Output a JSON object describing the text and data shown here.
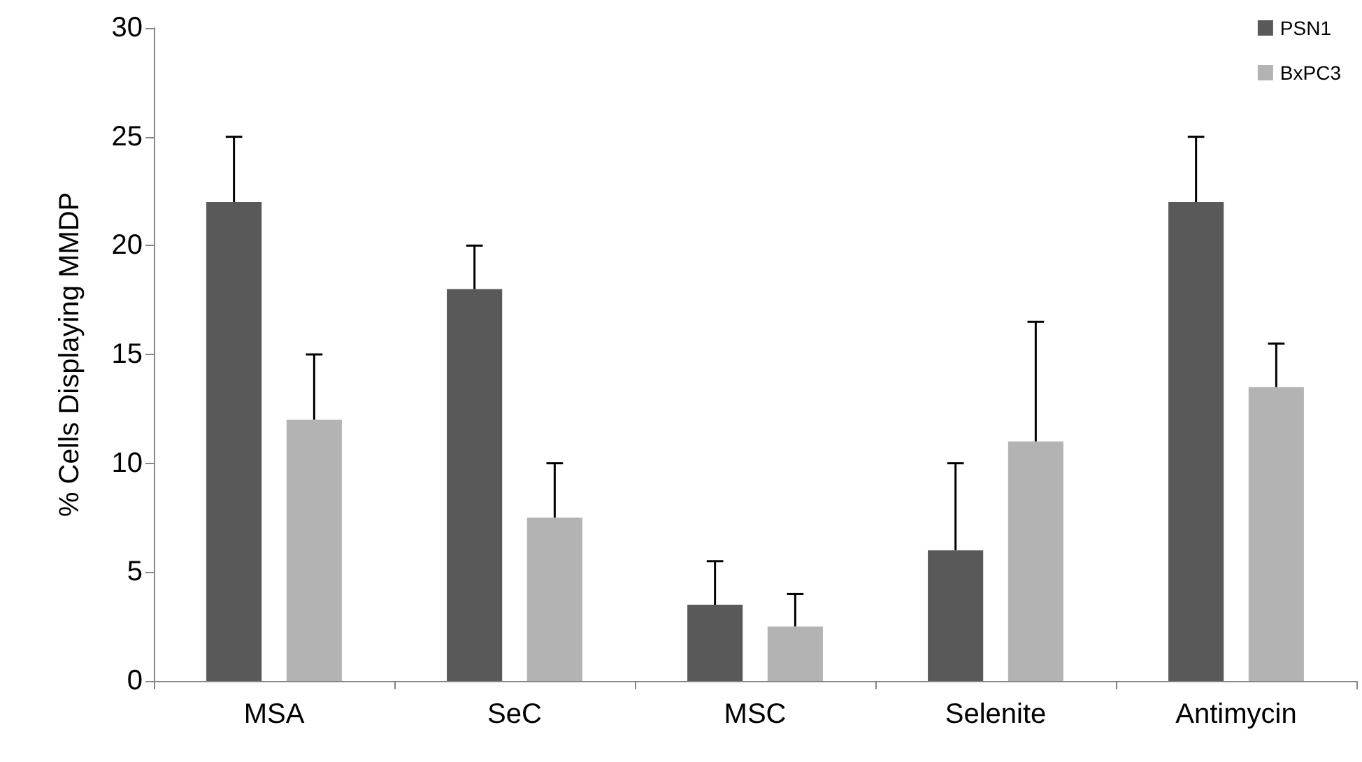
{
  "chart_data": {
    "type": "bar",
    "ylabel": "% Cells Displaying MMDP",
    "categories": [
      "MSA",
      "SeC",
      "MSC",
      "Selenite",
      "Antimycin"
    ],
    "series": [
      {
        "name": "PSN1",
        "color": "#595959",
        "values": [
          22,
          18,
          3.5,
          6,
          22
        ],
        "errors": [
          [
            22,
            25
          ],
          [
            18,
            20
          ],
          [
            3.5,
            5.5
          ],
          [
            6,
            10
          ],
          [
            22,
            25
          ]
        ]
      },
      {
        "name": "BxPC3",
        "color": "#b3b3b3",
        "values": [
          12,
          7.5,
          2.5,
          11,
          13.5
        ],
        "errors": [
          [
            12,
            15
          ],
          [
            7.5,
            10
          ],
          [
            2.5,
            4
          ],
          [
            11,
            16.5
          ],
          [
            13.5,
            15.5
          ]
        ]
      }
    ],
    "ylim": [
      0,
      30
    ],
    "yticks": [
      0,
      5,
      10,
      15,
      20,
      25,
      30
    ],
    "grid": false,
    "legend": "top right"
  }
}
